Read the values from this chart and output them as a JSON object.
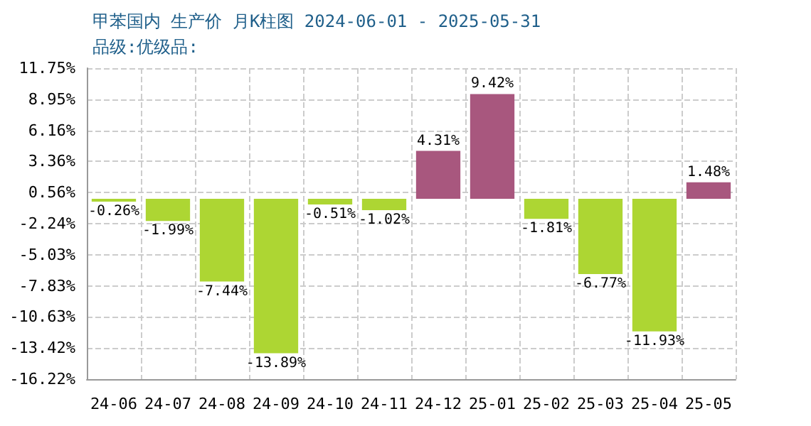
{
  "chart_data": {
    "type": "bar",
    "title": "甲苯国内 生产价 月K柱图 2024-06-01 - 2025-05-31",
    "subtitle": "品级:优级品:",
    "categories": [
      "24-06",
      "24-07",
      "24-08",
      "24-09",
      "24-10",
      "24-11",
      "24-12",
      "25-01",
      "25-02",
      "25-03",
      "25-04",
      "25-05"
    ],
    "values": [
      -0.26,
      -1.99,
      -7.44,
      -13.89,
      -0.51,
      -1.02,
      4.31,
      9.42,
      -1.81,
      -6.77,
      -11.93,
      1.48
    ],
    "colors": [
      "#add633",
      "#add633",
      "#add633",
      "#add633",
      "#add633",
      "#add633",
      "#a8577e",
      "#a8577e",
      "#add633",
      "#add633",
      "#add633",
      "#a8577e"
    ],
    "value_labels": [
      "-0.26%",
      "-1.99%",
      "-7.44%",
      "-13.89%",
      "-0.51%",
      "-1.02%",
      "4.31%",
      "9.42%",
      "-1.81%",
      "-6.77%",
      "-11.93%",
      "1.48%"
    ],
    "ylim": [
      -16.22,
      11.75
    ],
    "yticks": [
      {
        "value": -16.22,
        "label": "-16.22%"
      },
      {
        "value": -13.42,
        "label": "-13.42%"
      },
      {
        "value": -10.63,
        "label": "-10.63%"
      },
      {
        "value": -7.83,
        "label": "-7.83%"
      },
      {
        "value": -5.03,
        "label": "-5.03%"
      },
      {
        "value": -2.24,
        "label": "-2.24%"
      },
      {
        "value": 0.56,
        "label": "0.56%"
      },
      {
        "value": 3.36,
        "label": "3.36%"
      },
      {
        "value": 6.16,
        "label": "6.16%"
      },
      {
        "value": 8.95,
        "label": "8.95%"
      },
      {
        "value": 11.75,
        "label": "11.75%"
      }
    ],
    "grid": true
  }
}
